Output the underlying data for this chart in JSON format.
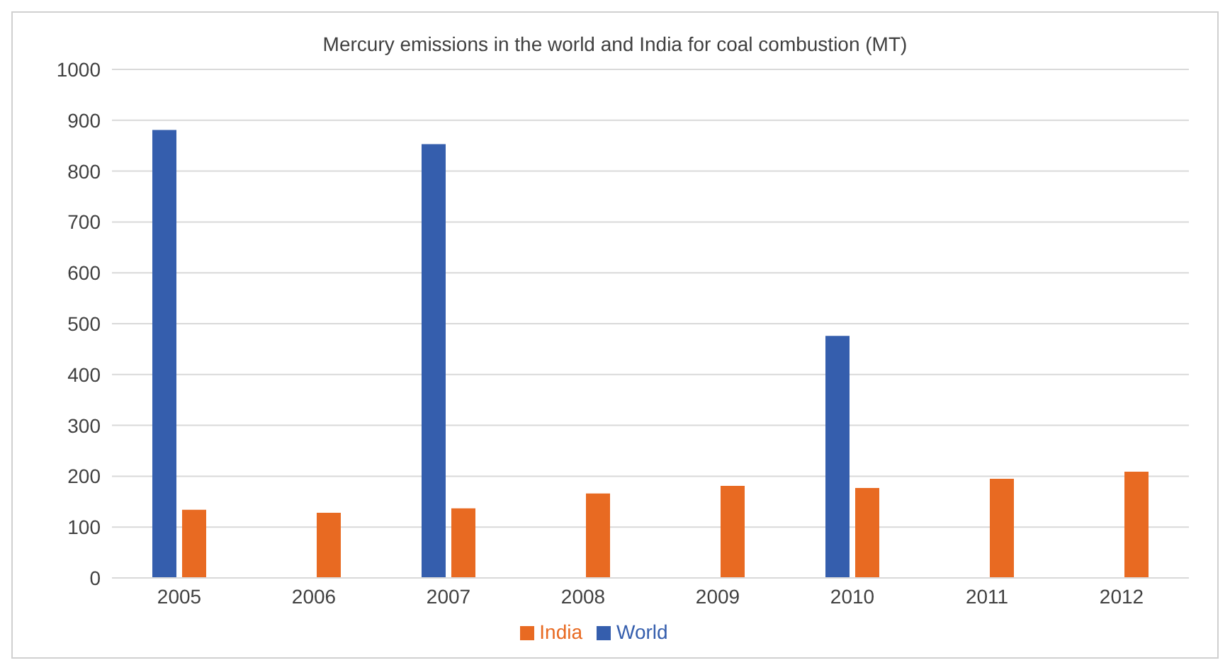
{
  "chart_data": {
    "type": "bar",
    "title": "Mercury emissions in the world and India for coal combustion (MT)",
    "categories": [
      "2005",
      "2006",
      "2007",
      "2008",
      "2009",
      "2010",
      "2011",
      "2012"
    ],
    "series": [
      {
        "name": "World",
        "color": "#355ead",
        "values": [
          881,
          null,
          853,
          null,
          null,
          476,
          null,
          null
        ]
      },
      {
        "name": "India",
        "color": "#e86a22",
        "values": [
          134,
          128,
          137,
          166,
          181,
          177,
          195,
          209
        ]
      }
    ],
    "ylim": [
      0,
      1000
    ],
    "yticks": [
      0,
      100,
      200,
      300,
      400,
      500,
      600,
      700,
      800,
      900,
      1000
    ],
    "grid": "y",
    "legend": "bottom"
  }
}
